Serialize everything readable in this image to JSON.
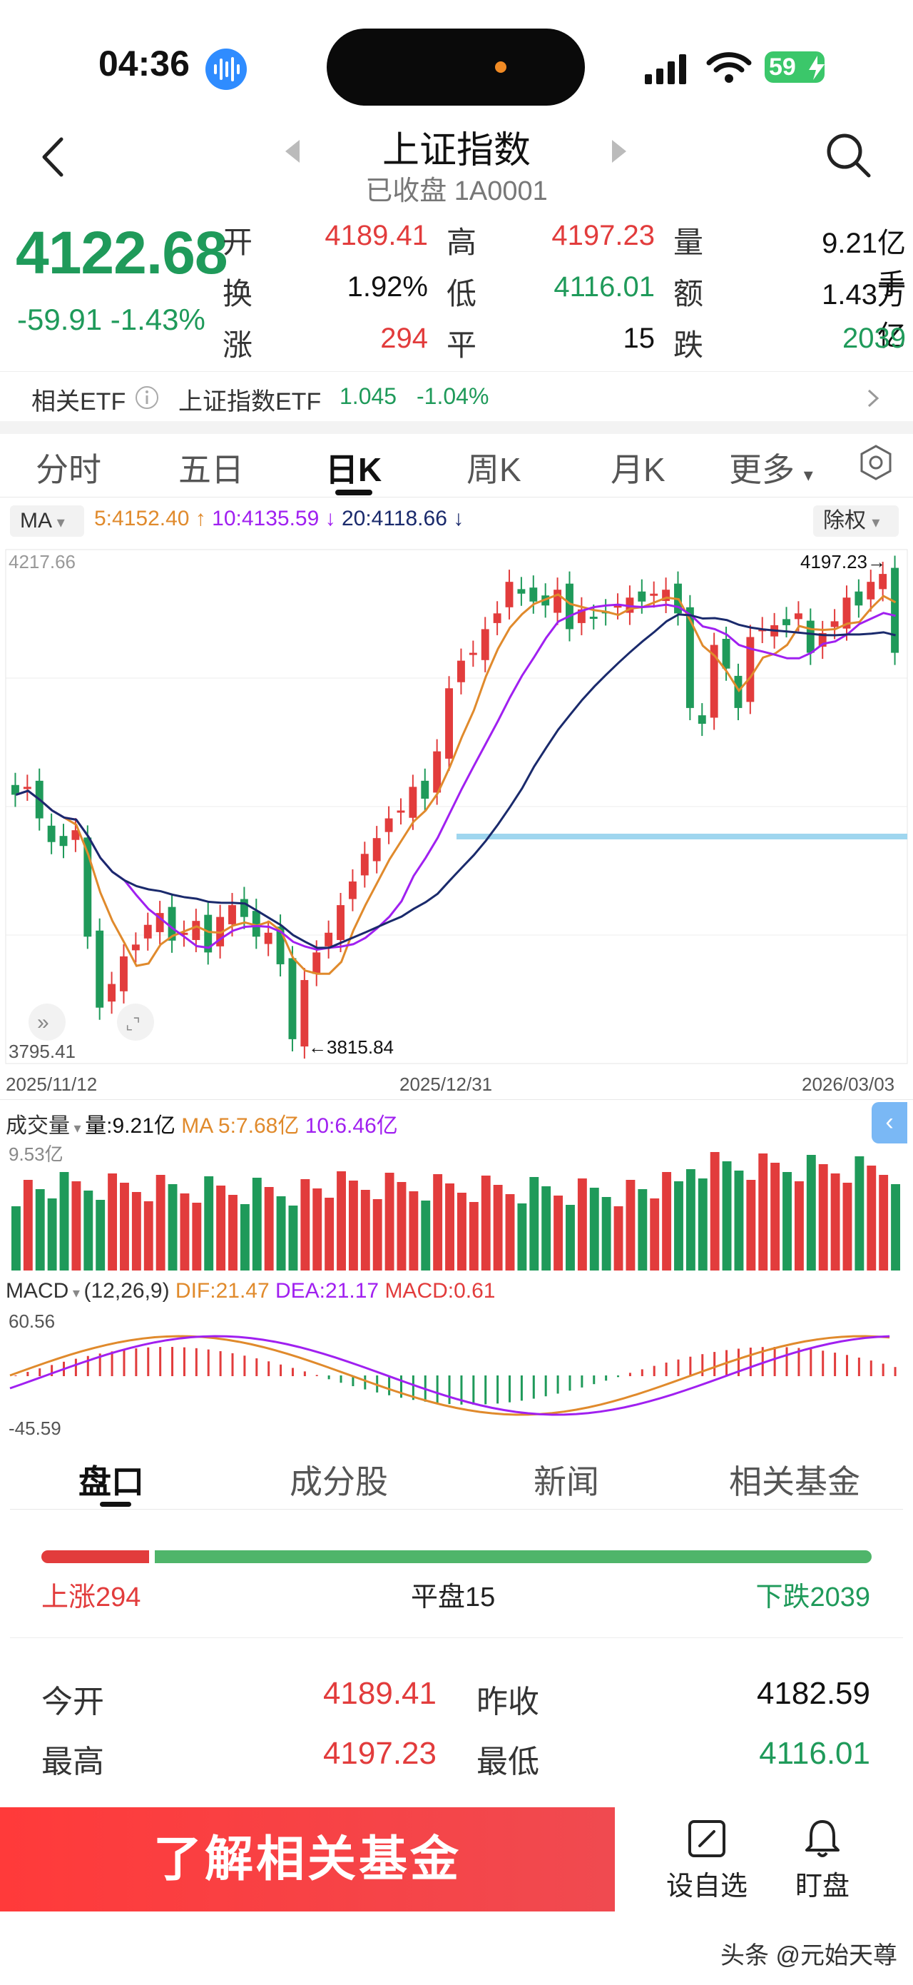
{
  "status_bar": {
    "time": "04:36",
    "battery": "59"
  },
  "header": {
    "title": "上证指数",
    "subtitle": "已收盘 1A0001"
  },
  "quote": {
    "price": "4122.68",
    "change": "-59.91 -1.43%",
    "rows": [
      [
        {
          "label": "开",
          "value": "4189.41",
          "color": "red"
        },
        {
          "label": "高",
          "value": "4197.23",
          "color": "red"
        },
        {
          "label": "量",
          "value": "9.21亿手",
          "color": "black"
        }
      ],
      [
        {
          "label": "换",
          "value": "1.92%",
          "color": "black"
        },
        {
          "label": "低",
          "value": "4116.01",
          "color": "green"
        },
        {
          "label": "额",
          "value": "1.43万亿",
          "color": "black"
        }
      ],
      [
        {
          "label": "涨",
          "value": "294",
          "color": "red"
        },
        {
          "label": "平",
          "value": "15",
          "color": "black"
        },
        {
          "label": "跌",
          "value": "2039",
          "color": "green"
        }
      ]
    ]
  },
  "etf": {
    "label": "相关ETF",
    "name": "上证指数ETF",
    "price": "1.045",
    "change": "-1.04%"
  },
  "kline_tabs": [
    "分时",
    "五日",
    "日K",
    "周K",
    "月K",
    "更多"
  ],
  "ma_bar": {
    "select": "MA",
    "ma5": "5:4152.40",
    "ma10": "10:4135.59",
    "ma20": "20:4118.66",
    "adjust": "除权",
    "colors": {
      "ma5": "#e08a2c",
      "ma10": "#a020f0",
      "ma20": "#1a2a6c"
    }
  },
  "chart": {
    "y_max_label": "4217.66",
    "y_min_label": "3795.41",
    "high_marker": "4197.23",
    "low_marker": "3815.84",
    "dates": [
      "2025/11/12",
      "2025/12/31",
      "2026/03/03"
    ]
  },
  "volume": {
    "select": "成交量",
    "value": "量:9.21亿",
    "ma5": "MA 5:7.68亿",
    "ma10": "10:6.46亿",
    "max_label": "9.53亿"
  },
  "macd": {
    "select": "MACD",
    "params": "(12,26,9)",
    "dif": "DIF:21.47",
    "dea": "DEA:21.17",
    "macd": "MACD:0.61",
    "max_label": "60.56",
    "min_label": "-45.59"
  },
  "bottom_tabs": [
    "盘口",
    "成分股",
    "新闻",
    "相关基金"
  ],
  "breadth": {
    "up": "上涨294",
    "flat": "平盘15",
    "down": "下跌2039",
    "up_ratio": 0.13
  },
  "stats": [
    [
      {
        "label": "今开",
        "value": "4189.41",
        "color": "red"
      },
      {
        "label": "昨收",
        "value": "4182.59",
        "color": "black"
      }
    ],
    [
      {
        "label": "最高",
        "value": "4197.23",
        "color": "red"
      },
      {
        "label": "最低",
        "value": "4116.01",
        "color": "green"
      }
    ]
  ],
  "actions": {
    "cta": "了解相关基金",
    "watchlist": "设自选",
    "alert": "盯盘"
  },
  "footer": "头条 @元始天尊",
  "chart_data": {
    "type": "candlestick",
    "ylim": [
      3795.41,
      4217.66
    ],
    "x_dates": [
      "2025/11/12",
      "2025/12/31",
      "2026/03/03"
    ],
    "last": {
      "open": 4189.41,
      "high": 4197.23,
      "low": 4116.01,
      "close": 4122.68
    },
    "period_high": 4197.23,
    "period_low": 3815.84,
    "ma": {
      "ma5": 4152.4,
      "ma10": 4135.59,
      "ma20": 4118.66
    }
  }
}
